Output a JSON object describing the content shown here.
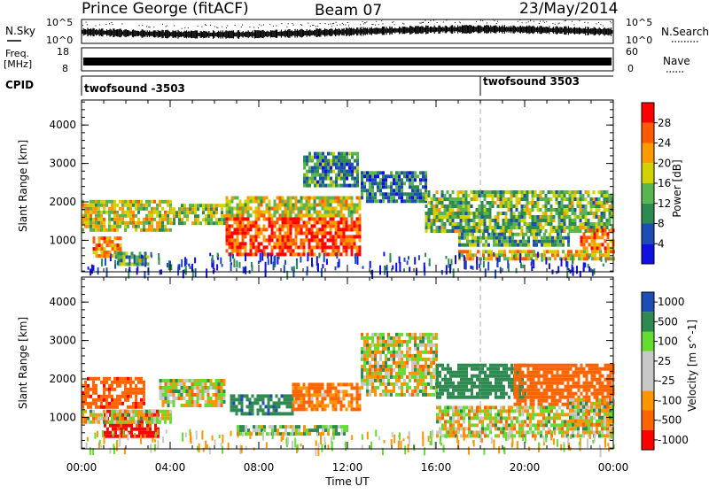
{
  "header": {
    "station": "Prince George (fitACF)",
    "beam": "Beam 07",
    "date": "23/May/2014"
  },
  "left_labels": {
    "nsky": "N.Sky",
    "freq_line1": "Freq.",
    "freq_line2": "[MHz]",
    "cpid": "CPID"
  },
  "right_labels": {
    "nsearch": "N.Search",
    "nave": "Nave"
  },
  "mini_axes": {
    "nsky_top": "10^5",
    "nsky_bottom": "10^0",
    "freq_top": "18",
    "freq_bottom": "8",
    "nsearch_top": "10^5",
    "nsearch_bottom": "10^0",
    "nave_top": "60",
    "nave_bottom": "0"
  },
  "cpid_segments": [
    {
      "label": "twofsound -3503",
      "start_hour": 0
    },
    {
      "label": "twofsound 3503",
      "start_hour": 18
    }
  ],
  "colors": {
    "power": [
      "#1010e0",
      "#1c4cb4",
      "#2e8a50",
      "#5ab450",
      "#d2d200",
      "#ff9a00",
      "#ff5a00",
      "#ff0000"
    ],
    "velocity": [
      "#ff0000",
      "#ff6400",
      "#ff9600",
      "#c8c8c8",
      "#c8c8c8",
      "#64dc32",
      "#2e8a50",
      "#1c4cb4"
    ],
    "ground_scatter": "#c8c8c8"
  },
  "chart_data": [
    {
      "type": "heatmap",
      "title": "Power",
      "xlabel": "",
      "ylabel": "Slant Range [km]",
      "x_unit": "hours UT",
      "xlim": [
        0,
        24
      ],
      "ylim": [
        180,
        4650
      ],
      "y_ticks": [
        "1000",
        "2000",
        "3000",
        "4000"
      ],
      "colorbar": {
        "label": "Power [dB]",
        "ticks": [
          "4",
          "8",
          "12",
          "16",
          "20",
          "24",
          "28"
        ],
        "range": [
          0,
          32
        ]
      },
      "scatter_bands": [
        {
          "t": [
            0.0,
            4.0
          ],
          "range": [
            1250,
            2050
          ],
          "power": 18
        },
        {
          "t": [
            0.5,
            1.8
          ],
          "range": [
            600,
            1100
          ],
          "power": 22
        },
        {
          "t": [
            1.5,
            3.0
          ],
          "range": [
            420,
            700
          ],
          "power": 14
        },
        {
          "t": [
            4.0,
            6.5
          ],
          "range": [
            1400,
            1950
          ],
          "power": 16
        },
        {
          "t": [
            6.5,
            12.6
          ],
          "range": [
            650,
            1600
          ],
          "power": 27
        },
        {
          "t": [
            6.5,
            12.6
          ],
          "range": [
            1600,
            2150
          ],
          "power": 18
        },
        {
          "t": [
            10.0,
            12.5
          ],
          "range": [
            2400,
            3300
          ],
          "power": 10
        },
        {
          "t": [
            12.6,
            15.5
          ],
          "range": [
            2000,
            2800
          ],
          "power": 9
        },
        {
          "t": [
            15.5,
            24.0
          ],
          "range": [
            1200,
            2300
          ],
          "power": 14
        },
        {
          "t": [
            17.0,
            22.0
          ],
          "range": [
            900,
            1200
          ],
          "power": 12
        },
        {
          "t": [
            17.0,
            24.0
          ],
          "range": [
            500,
            750
          ],
          "power": 20
        },
        {
          "t": [
            22.5,
            24.0
          ],
          "range": [
            800,
            1300
          ],
          "power": 26
        }
      ]
    },
    {
      "type": "heatmap",
      "title": "Velocity",
      "xlabel": "Time UT",
      "ylabel": "Slant Range [km]",
      "x_unit": "hours UT",
      "xlim": [
        0,
        24
      ],
      "ylim": [
        180,
        4650
      ],
      "x_ticks": [
        "00:00",
        "04:00",
        "08:00",
        "12:00",
        "16:00",
        "20:00",
        "00:00"
      ],
      "y_ticks": [
        "1000",
        "2000",
        "3000",
        "4000"
      ],
      "colorbar": {
        "label": "Velocity [m s^-1]",
        "ticks": [
          "1000",
          "500",
          "100",
          "25",
          "-25",
          "-100",
          "-500",
          "-1000"
        ]
      },
      "scatter_bands": [
        {
          "t": [
            0.0,
            2.8
          ],
          "range": [
            1250,
            2050
          ],
          "velocity": -400
        },
        {
          "t": [
            1.0,
            3.5
          ],
          "range": [
            500,
            1200
          ],
          "velocity": -600
        },
        {
          "t": [
            0.0,
            4.0
          ],
          "range": [
            850,
            1200
          ],
          "velocity": 0
        },
        {
          "t": [
            3.5,
            6.5
          ],
          "range": [
            1300,
            2000
          ],
          "velocity": 0
        },
        {
          "t": [
            6.7,
            9.5
          ],
          "range": [
            1100,
            1600
          ],
          "velocity": 400
        },
        {
          "t": [
            9.5,
            12.6
          ],
          "range": [
            1200,
            1900
          ],
          "velocity": -150
        },
        {
          "t": [
            7.0,
            12.0
          ],
          "range": [
            550,
            800
          ],
          "velocity": 80
        },
        {
          "t": [
            12.6,
            16.0
          ],
          "range": [
            1600,
            3200
          ],
          "velocity": 0
        },
        {
          "t": [
            16.0,
            20.0
          ],
          "range": [
            1500,
            2400
          ],
          "velocity": 300
        },
        {
          "t": [
            19.5,
            24.0
          ],
          "range": [
            1300,
            2400
          ],
          "velocity": -250
        },
        {
          "t": [
            16.0,
            24.0
          ],
          "range": [
            500,
            1300
          ],
          "velocity": 0
        },
        {
          "t": [
            22.0,
            24.0
          ],
          "range": [
            800,
            1500
          ],
          "velocity": 0
        }
      ]
    }
  ]
}
